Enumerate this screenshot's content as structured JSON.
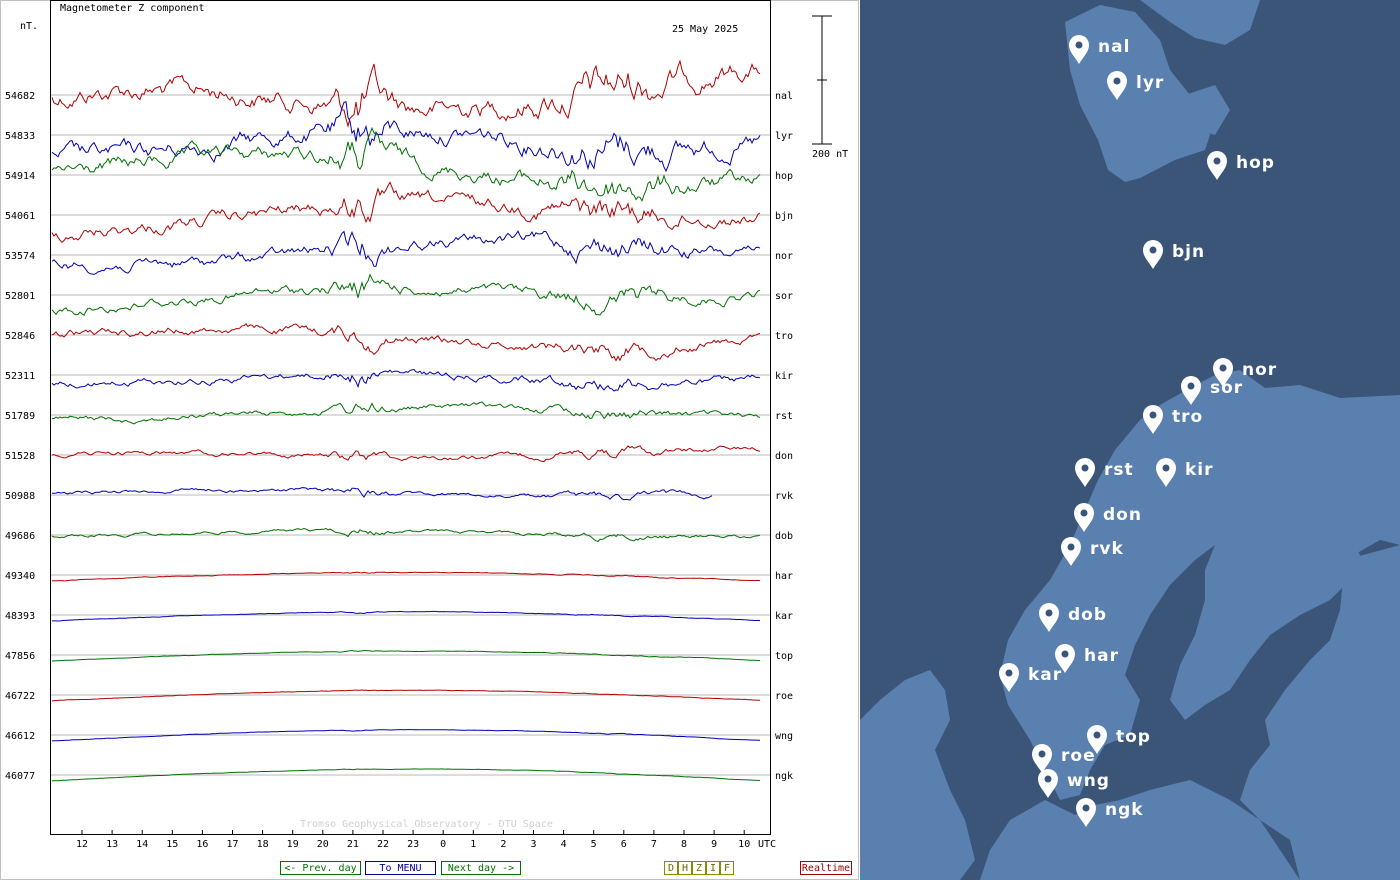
{
  "header": {
    "title": "Magnetometer Z component",
    "unit": "nT.",
    "date": "25 May 2025",
    "scale_label": "200 nT",
    "credit": "Tromso Geophysical Observatory - DTU Space"
  },
  "nav": {
    "prev": "<- Prev. day",
    "menu": "To MENU",
    "next": "Next day ->",
    "components": [
      "D",
      "H",
      "Z",
      "I",
      "F"
    ],
    "realtime": "Realtime"
  },
  "chart_data": {
    "type": "line",
    "title": "Magnetometer Z component",
    "ylabel": "nT.",
    "x_tick_labels": [
      "12",
      "13",
      "14",
      "15",
      "16",
      "17",
      "18",
      "19",
      "20",
      "21",
      "22",
      "23",
      "0",
      "1",
      "2",
      "3",
      "4",
      "5",
      "6",
      "7",
      "8",
      "9",
      "10"
    ],
    "x_unit": "UTC",
    "stations": [
      {
        "code": "nal",
        "baseline": "54682",
        "color": "#b00000"
      },
      {
        "code": "lyr",
        "baseline": "54833",
        "color": "#0000b0"
      },
      {
        "code": "hop",
        "baseline": "54914",
        "color": "#007000"
      },
      {
        "code": "bjn",
        "baseline": "54061",
        "color": "#b00000"
      },
      {
        "code": "nor",
        "baseline": "53574",
        "color": "#0000b0"
      },
      {
        "code": "sor",
        "baseline": "52801",
        "color": "#007000"
      },
      {
        "code": "tro",
        "baseline": "52846",
        "color": "#b00000"
      },
      {
        "code": "kir",
        "baseline": "52311",
        "color": "#0000b0"
      },
      {
        "code": "rst",
        "baseline": "51789",
        "color": "#007000"
      },
      {
        "code": "don",
        "baseline": "51528",
        "color": "#b00000"
      },
      {
        "code": "rvk",
        "baseline": "50988",
        "color": "#0000b0"
      },
      {
        "code": "dob",
        "baseline": "49686",
        "color": "#007000"
      },
      {
        "code": "har",
        "baseline": "49340",
        "color": "#b00000"
      },
      {
        "code": "kar",
        "baseline": "48393",
        "color": "#0000b0"
      },
      {
        "code": "top",
        "baseline": "47856",
        "color": "#007000"
      },
      {
        "code": "roe",
        "baseline": "46722",
        "color": "#b00000"
      },
      {
        "code": "wng",
        "baseline": "46612",
        "color": "#0000b0"
      },
      {
        "code": "ngk",
        "baseline": "46077",
        "color": "#007000"
      }
    ]
  },
  "map": {
    "land_color": "#5a80b0",
    "sea_color": "#3a5577",
    "markers": [
      "nal",
      "lyr",
      "hop",
      "bjn",
      "nor",
      "sor",
      "tro",
      "rst",
      "kir",
      "don",
      "rvk",
      "dob",
      "har",
      "kar",
      "top",
      "roe",
      "wng",
      "ngk"
    ]
  }
}
